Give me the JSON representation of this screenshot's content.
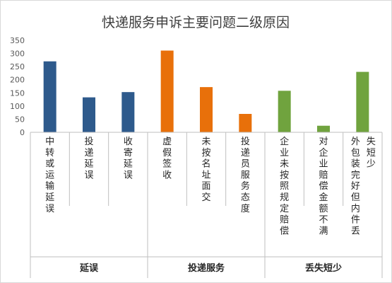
{
  "chart_data": {
    "type": "bar",
    "title": "快递服务申诉主要问题二级原因",
    "xlabel": "",
    "ylabel": "",
    "ylim": [
      0,
      350
    ],
    "yticks": [
      0,
      50,
      100,
      150,
      200,
      250,
      300,
      350
    ],
    "grid": false,
    "legend": "none",
    "categories": [
      "中转或运输延误",
      "投递延误",
      "收寄延误",
      "虚假签收",
      "未按名址面交",
      "投递员服务态度",
      "企业未按照规定赔偿",
      "对企业赔偿金额不满",
      "外包装完好但内件丢失短少"
    ],
    "values": [
      270,
      133,
      153,
      311,
      172,
      70,
      158,
      25,
      230
    ],
    "bar_colors": [
      "#2e5a8c",
      "#2e5a8c",
      "#2e5a8c",
      "#e8700a",
      "#e8700a",
      "#e8700a",
      "#70a33e",
      "#70a33e",
      "#70a33e"
    ],
    "groups": [
      {
        "label": "延误",
        "start": 0,
        "end": 2
      },
      {
        "label": "投递服务",
        "start": 3,
        "end": 5
      },
      {
        "label": "丢失短少",
        "start": 6,
        "end": 8
      }
    ]
  }
}
